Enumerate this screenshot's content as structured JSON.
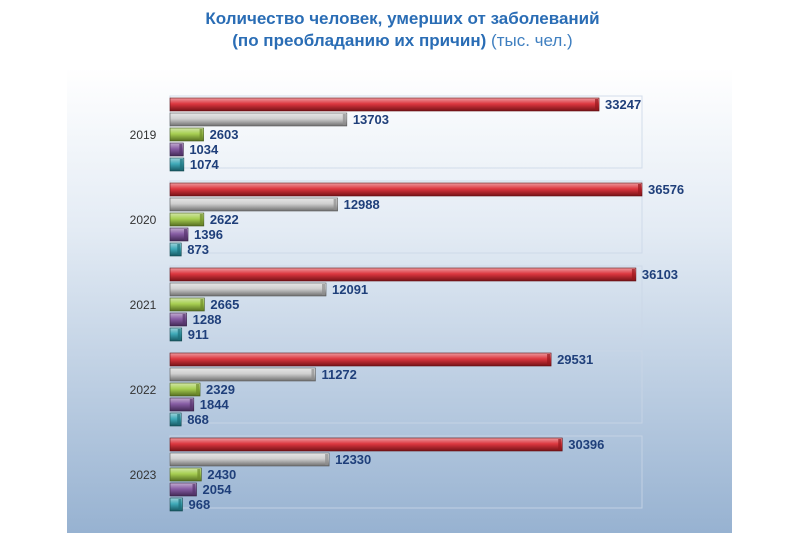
{
  "title_line1": "Количество человек, умерших от заболеваний",
  "title_line2": "(по преобладанию их причин)",
  "title_unit": "(тыс. чел.)",
  "colors": {
    "background_top": "#ffffff",
    "background_bottom": "#9db6d3",
    "label_color": "#1f3f7a",
    "year_color": "#333333",
    "series": [
      "#d8212a",
      "#c9c9c9",
      "#9cc83e",
      "#7a4b9a",
      "#2a9fb0"
    ]
  },
  "chart_data": {
    "type": "bar",
    "orientation": "horizontal",
    "categories": [
      "2019",
      "2020",
      "2021",
      "2022",
      "2023"
    ],
    "series": [
      {
        "values": [
          33247,
          36576,
          36103,
          29531,
          30396
        ]
      },
      {
        "values": [
          13703,
          12988,
          12091,
          11272,
          12330
        ]
      },
      {
        "values": [
          2603,
          2622,
          2665,
          2329,
          2430
        ]
      },
      {
        "values": [
          1034,
          1396,
          1288,
          1844,
          2054
        ]
      },
      {
        "values": [
          1074,
          873,
          911,
          868,
          968
        ]
      }
    ],
    "xlim": [
      0,
      40000
    ],
    "grid": false,
    "legend": "none",
    "data_labels": true
  }
}
